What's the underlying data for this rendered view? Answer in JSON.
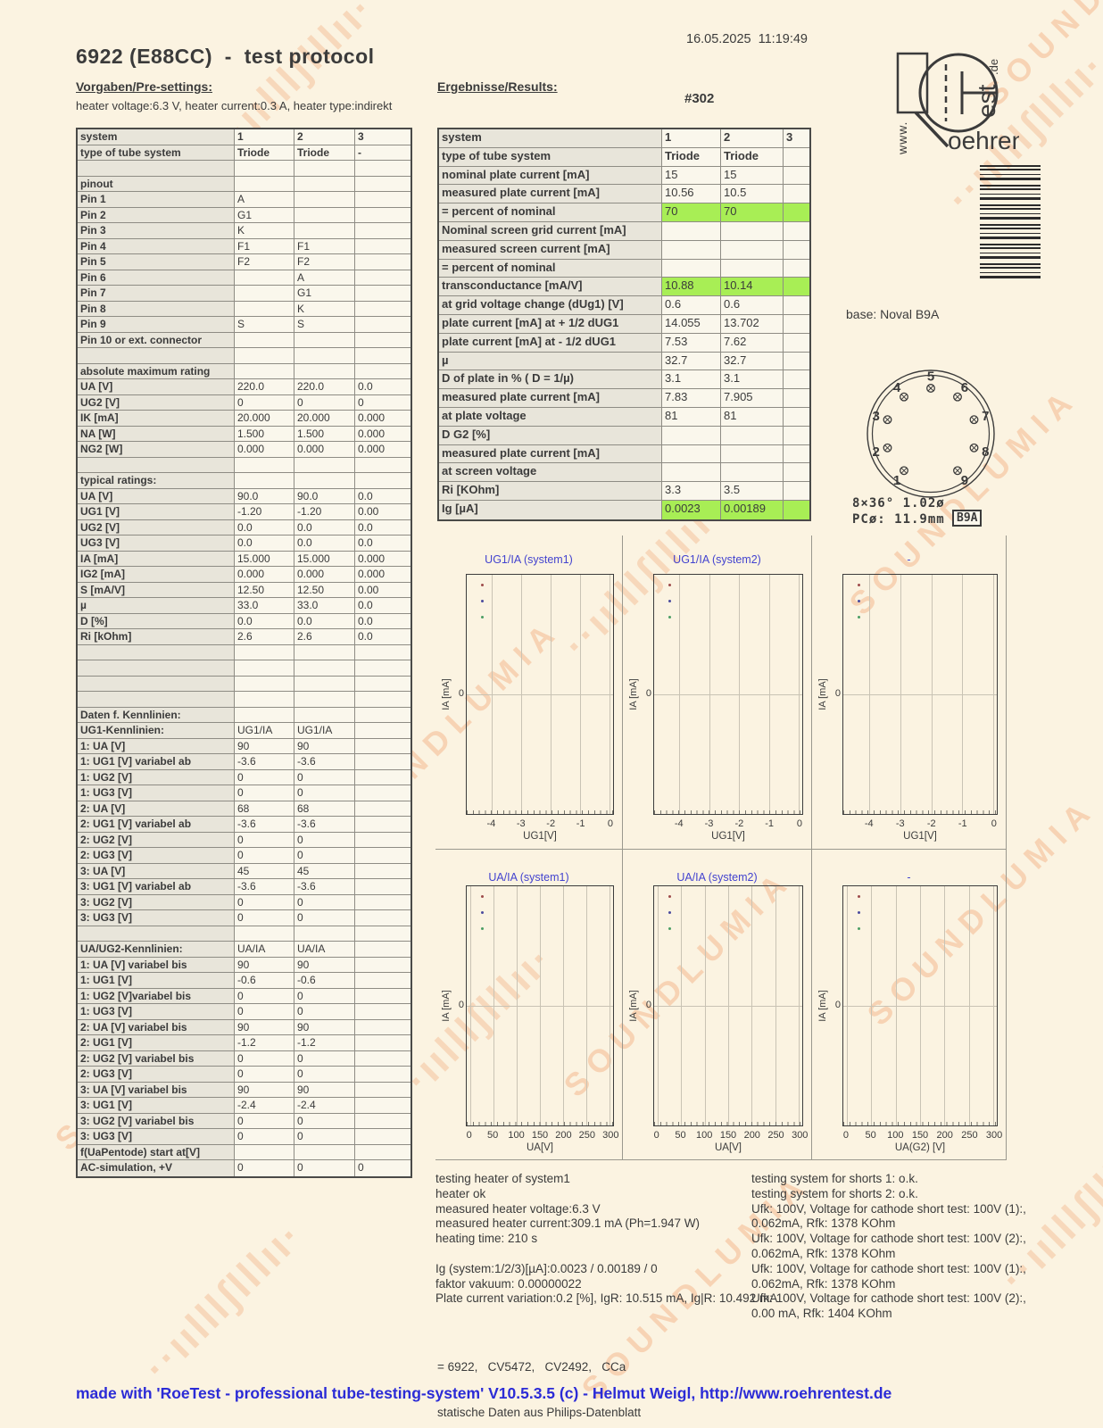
{
  "page": {
    "date": "16.05.2025  11:19:49",
    "title": "6922 (E88CC)  -  test protocol",
    "tube_number": "#302",
    "footer": "made with 'RoeTest - professional tube-testing-system' V10.5.3.5 (c) - Helmut Weigl, http://www.roehrentest.de"
  },
  "watermark": {
    "word": "SOUNDLUMIA",
    "flourish": "··ıılllʃlllıı·"
  },
  "logo": {
    "www": "www.",
    "name": "oehren",
    "vertical": "est",
    "tld": ".de"
  },
  "presettings": {
    "heading": "Vorgaben/Pre-settings:",
    "subtitle": "heater voltage:6.3 V, heater current:0.3 A, heater type:indirekt",
    "rows": [
      [
        "system",
        "1",
        "2",
        "3",
        "h"
      ],
      [
        "type of tube system",
        "Triode",
        "Triode",
        "-",
        "b"
      ],
      [
        "",
        "",
        "",
        "",
        ""
      ],
      [
        "pinout",
        "",
        "",
        "",
        ""
      ],
      [
        "Pin 1",
        "A",
        "",
        "",
        ""
      ],
      [
        "Pin 2",
        "G1",
        "",
        "",
        ""
      ],
      [
        "Pin 3",
        "K",
        "",
        "",
        ""
      ],
      [
        "Pin 4",
        "F1",
        "F1",
        "",
        ""
      ],
      [
        "Pin 5",
        "F2",
        "F2",
        "",
        ""
      ],
      [
        "Pin 6",
        "",
        "A",
        "",
        ""
      ],
      [
        "Pin 7",
        "",
        "G1",
        "",
        ""
      ],
      [
        "Pin 8",
        "",
        "K",
        "",
        ""
      ],
      [
        "Pin 9",
        "S",
        "S",
        "",
        ""
      ],
      [
        "Pin 10 or ext. connector",
        "",
        "",
        "",
        ""
      ],
      [
        "",
        "",
        "",
        "",
        ""
      ],
      [
        "absolute maximum rating",
        "",
        "",
        "",
        ""
      ],
      [
        "UA [V]",
        "220.0",
        "220.0",
        "0.0",
        ""
      ],
      [
        "UG2 [V]",
        "0",
        "0",
        "0",
        ""
      ],
      [
        "IK [mA]",
        "20.000",
        "20.000",
        "0.000",
        ""
      ],
      [
        "NA [W]",
        "1.500",
        "1.500",
        "0.000",
        ""
      ],
      [
        "NG2 [W]",
        "0.000",
        "0.000",
        "0.000",
        ""
      ],
      [
        "",
        "",
        "",
        "",
        ""
      ],
      [
        "typical ratings:",
        "",
        "",
        "",
        ""
      ],
      [
        "UA [V]",
        "90.0",
        "90.0",
        "0.0",
        ""
      ],
      [
        "UG1 [V]",
        "-1.20",
        "-1.20",
        "0.00",
        ""
      ],
      [
        "UG2 [V]",
        "0.0",
        "0.0",
        "0.0",
        ""
      ],
      [
        "UG3 [V]",
        "0.0",
        "0.0",
        "0.0",
        ""
      ],
      [
        "IA [mA]",
        "15.000",
        "15.000",
        "0.000",
        ""
      ],
      [
        "IG2 [mA]",
        "0.000",
        "0.000",
        "0.000",
        ""
      ],
      [
        "S [mA/V]",
        "12.50",
        "12.50",
        "0.00",
        ""
      ],
      [
        "µ",
        "33.0",
        "33.0",
        "0.0",
        ""
      ],
      [
        "D [%]",
        "0.0",
        "0.0",
        "0.0",
        ""
      ],
      [
        "Ri [kOhm]",
        "2.6",
        "2.6",
        "0.0",
        ""
      ],
      [
        "",
        "",
        "",
        "",
        ""
      ],
      [
        "",
        "",
        "",
        "",
        ""
      ],
      [
        "",
        "",
        "",
        "",
        ""
      ],
      [
        "",
        "",
        "",
        "",
        ""
      ],
      [
        "Daten f. Kennlinien:",
        "",
        "",
        "",
        ""
      ],
      [
        "UG1-Kennlinien:",
        "UG1/IA",
        "UG1/IA",
        "",
        ""
      ],
      [
        "1: UA [V]",
        "90",
        "90",
        "",
        ""
      ],
      [
        "1: UG1 [V] variabel ab",
        "-3.6",
        "-3.6",
        "",
        ""
      ],
      [
        "1: UG2 [V]",
        "0",
        "0",
        "",
        ""
      ],
      [
        "1: UG3 [V]",
        "0",
        "0",
        "",
        ""
      ],
      [
        "2: UA [V]",
        "68",
        "68",
        "",
        ""
      ],
      [
        "2: UG1 [V] variabel ab",
        "-3.6",
        "-3.6",
        "",
        ""
      ],
      [
        "2: UG2 [V]",
        "0",
        "0",
        "",
        ""
      ],
      [
        "2: UG3 [V]",
        "0",
        "0",
        "",
        ""
      ],
      [
        "3: UA [V]",
        "45",
        "45",
        "",
        ""
      ],
      [
        "3: UG1 [V] variabel ab",
        "-3.6",
        "-3.6",
        "",
        ""
      ],
      [
        "3: UG2 [V]",
        "0",
        "0",
        "",
        ""
      ],
      [
        "3: UG3 [V]",
        "0",
        "0",
        "",
        ""
      ],
      [
        "",
        "",
        "",
        "",
        ""
      ],
      [
        "UA/UG2-Kennlinien:",
        "UA/IA",
        "UA/IA",
        "",
        ""
      ],
      [
        "1: UA [V] variabel bis",
        "90",
        "90",
        "",
        ""
      ],
      [
        "1: UG1 [V]",
        "-0.6",
        "-0.6",
        "",
        ""
      ],
      [
        "1: UG2 [V]variabel bis",
        "0",
        "0",
        "",
        ""
      ],
      [
        "1: UG3 [V]",
        "0",
        "0",
        "",
        ""
      ],
      [
        "2: UA [V] variabel bis",
        "90",
        "90",
        "",
        ""
      ],
      [
        "2: UG1 [V]",
        "-1.2",
        "-1.2",
        "",
        ""
      ],
      [
        "2: UG2 [V] variabel bis",
        "0",
        "0",
        "",
        ""
      ],
      [
        "2: UG3 [V]",
        "0",
        "0",
        "",
        ""
      ],
      [
        "3: UA [V] variabel bis",
        "90",
        "90",
        "",
        ""
      ],
      [
        "3: UG1 [V]",
        "-2.4",
        "-2.4",
        "",
        ""
      ],
      [
        "3: UG2 [V] variabel bis",
        "0",
        "0",
        "",
        ""
      ],
      [
        "3: UG3 [V]",
        "0",
        "0",
        "",
        ""
      ],
      [
        "f(UaPentode) start at[V]",
        "",
        "",
        "",
        ""
      ],
      [
        "AC-simulation, +V",
        "0",
        "0",
        "0",
        ""
      ]
    ]
  },
  "results": {
    "heading": "Ergebnisse/Results:",
    "rows": [
      [
        "system",
        "1",
        "2",
        "3",
        "h"
      ],
      [
        "type of tube system",
        "Triode",
        "Triode",
        "",
        "b"
      ],
      [
        "nominal plate current [mA]",
        "15",
        "15",
        "",
        ""
      ],
      [
        "measured plate current [mA]",
        "10.56",
        "10.5",
        "",
        ""
      ],
      [
        "= percent of nominal",
        "70",
        "70",
        "",
        "g"
      ],
      [
        "Nominal screen grid current [mA]",
        "",
        "",
        "",
        ""
      ],
      [
        "measured screen current [mA]",
        "",
        "",
        "",
        ""
      ],
      [
        "= percent of nominal",
        "",
        "",
        "",
        ""
      ],
      [
        "transconductance [mA/V]",
        "10.88",
        "10.14",
        "",
        "g"
      ],
      [
        "at grid voltage change (dUg1) [V]",
        "0.6",
        "0.6",
        "",
        ""
      ],
      [
        "plate current [mA] at + 1/2 dUG1",
        "14.055",
        "13.702",
        "",
        ""
      ],
      [
        "plate current [mA] at - 1/2 dUG1",
        "7.53",
        "7.62",
        "",
        ""
      ],
      [
        "µ",
        "32.7",
        "32.7",
        "",
        ""
      ],
      [
        "D of plate in % ( D = 1/µ)",
        "3.1",
        "3.1",
        "",
        ""
      ],
      [
        "measured plate current [mA]",
        "7.83",
        "7.905",
        "",
        ""
      ],
      [
        "at plate voltage",
        "81",
        "81",
        "",
        ""
      ],
      [
        "D G2 [%]",
        "",
        "",
        "",
        ""
      ],
      [
        "measured plate current [mA]",
        "",
        "",
        "",
        ""
      ],
      [
        "at screen voltage",
        "",
        "",
        "",
        ""
      ],
      [
        "Ri [KOhm]",
        "3.3",
        "3.5",
        "",
        ""
      ],
      [
        "Ig [µA]",
        "0.0023",
        "0.00189",
        "",
        "g"
      ]
    ]
  },
  "base": {
    "label": "base: Noval B9A",
    "pins": [
      "1",
      "2",
      "3",
      "4",
      "5",
      "6",
      "7",
      "8",
      "9"
    ],
    "dim_line1": "8×36° 1.02ø",
    "dim_line2": "PCø: 11.9mm",
    "code": "B9A"
  },
  "chart_data": [
    {
      "type": "line",
      "title": "UG1/IA (system1)",
      "xlabel": "UG1[V]",
      "ylabel": "IA [mA]",
      "xticks": [
        -4,
        -3,
        -2,
        -1,
        0
      ],
      "xlim": [
        -4.85,
        0.12
      ],
      "yticks": [
        0
      ],
      "grid": true,
      "legend_position": "top-left",
      "series": []
    },
    {
      "type": "line",
      "title": "UG1/IA (system2)",
      "xlabel": "UG1[V]",
      "ylabel": "IA [mA]",
      "xticks": [
        -4,
        -3,
        -2,
        -1,
        0
      ],
      "xlim": [
        -4.85,
        0.12
      ],
      "yticks": [
        0
      ],
      "grid": true,
      "legend_position": "top-left",
      "series": []
    },
    {
      "type": "line",
      "title": "-",
      "xlabel": "UG1[V]",
      "ylabel": "IA [mA]",
      "xticks": [
        -4,
        -3,
        -2,
        -1,
        0
      ],
      "xlim": [
        -4.85,
        0.12
      ],
      "yticks": [
        0
      ],
      "grid": true,
      "legend_position": "top-left",
      "series": []
    },
    {
      "type": "line",
      "title": "UA/IA (system1)",
      "xlabel": "UA[V]",
      "ylabel": "IA [mA]",
      "xticks": [
        0,
        50,
        100,
        150,
        200,
        250,
        300
      ],
      "xlim": [
        -7,
        307
      ],
      "yticks": [
        0
      ],
      "grid": true,
      "legend_position": "top-left",
      "series": []
    },
    {
      "type": "line",
      "title": "UA/IA (system2)",
      "xlabel": "UA[V]",
      "ylabel": "IA [mA]",
      "xticks": [
        0,
        50,
        100,
        150,
        200,
        250,
        300
      ],
      "xlim": [
        -7,
        307
      ],
      "yticks": [
        0
      ],
      "grid": true,
      "legend_position": "top-left",
      "series": []
    },
    {
      "type": "line",
      "title": "-",
      "xlabel": "UA(G2) [V]",
      "ylabel": "IA [mA]",
      "xticks": [
        0,
        50,
        100,
        150,
        200,
        250,
        300
      ],
      "xlim": [
        -7,
        307
      ],
      "yticks": [
        0
      ],
      "grid": true,
      "legend_position": "top-left",
      "series": []
    }
  ],
  "notes_left": [
    "testing heater of system1",
    "heater ok",
    "measured heater voltage:6.3 V",
    "measured heater current:309.1 mA (Ph=1.947 W)",
    "heating time: 210 s",
    "",
    "Ig (system:1/2/3)[µA]:0.0023 / 0.00189 / 0",
    "faktor vakuum: 0.00000022",
    "Plate current variation:0.2 [%], IgR: 10.515 mA, Ig|R: 10.492 mA"
  ],
  "notes_right": [
    "testing system for shorts 1: o.k.",
    "testing system for shorts 2: o.k.",
    "Ufk: 100V, Voltage for cathode short test: 100V (1):,",
    "0.062mA, Rfk: 1378 KOhm",
    "Ufk: 100V, Voltage for cathode short test: 100V (2):,",
    "0.062mA, Rfk: 1378 KOhm",
    "Ufk: 100V, Voltage for cathode short test: 100V (1):,",
    "0.062mA, Rfk: 1378 KOhm",
    "Ufk: 100V, Voltage for cathode short test: 100V (2):,",
    "0.00 mA, Rfk: 1404 KOhm"
  ],
  "equivalents": [
    "= 6922,   CV5472,   CV2492,   CCa",
    "statische Daten aus Philips-Datenblatt"
  ],
  "colors": {
    "accent_green": "#a8ee55",
    "chart_title_blue": "#4343cf",
    "footer_blue": "#2b2bd6",
    "watermark_orange": "#f0935a",
    "series_markers": [
      "#9e4b4b",
      "#4b4b9e",
      "#4b9e64"
    ]
  }
}
